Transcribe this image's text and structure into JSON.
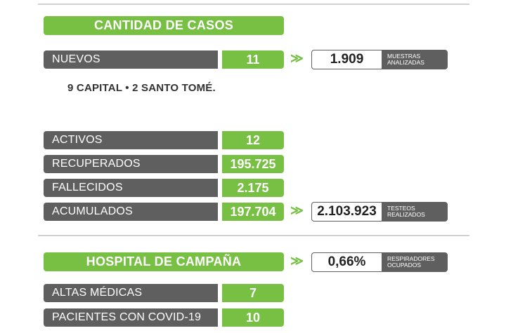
{
  "section_cases": {
    "title": "CANTIDAD DE CASOS",
    "nuevos": {
      "label": "NUEVOS",
      "value": "11"
    },
    "muestras": {
      "value": "1.909",
      "caption_line1": "MUESTRAS",
      "caption_line2": "ANALIZADAS"
    },
    "note": "9 CAPITAL • 2 SANTO TOMÉ."
  },
  "stats": [
    {
      "label": "ACTIVOS",
      "value": "12"
    },
    {
      "label": "RECUPERADOS",
      "value": "195.725"
    },
    {
      "label": "FALLECIDOS",
      "value": "2.175"
    },
    {
      "label": "ACUMULADOS",
      "value": "197.704"
    }
  ],
  "testeos": {
    "value": "2.103.923",
    "caption_line1": "TESTEOS",
    "caption_line2": "REALIZADOS"
  },
  "section_hospital": {
    "title": "HOSPITAL DE CAMPAÑA",
    "respiradores": {
      "value": "0,66%",
      "caption_line1": "RESPIRADORES",
      "caption_line2": "OCUPADOS"
    },
    "rows": [
      {
        "label": "ALTAS MÉDICAS",
        "value": "7"
      },
      {
        "label": "PACIENTES CON COVID-19",
        "value": "10"
      }
    ]
  },
  "arrow_glyph": "≫",
  "colors": {
    "accent_green": "#77c043",
    "dark_gray": "#5f5f5f"
  }
}
